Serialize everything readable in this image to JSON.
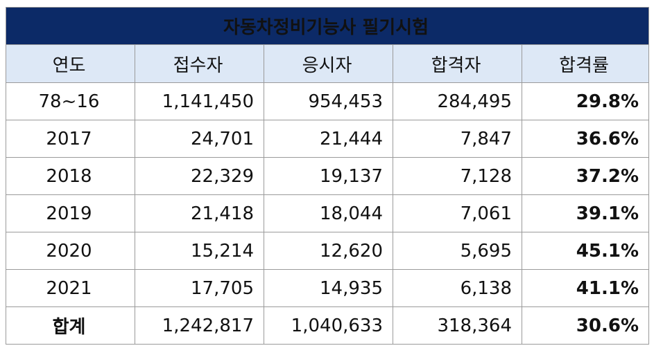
{
  "table": {
    "title": "자동차정비기능사 필기시험",
    "headers": [
      "연도",
      "접수자",
      "응시자",
      "합격자",
      "합격률"
    ],
    "rows": [
      {
        "year": "78~16",
        "applicants": "1,141,450",
        "examinees": "954,453",
        "passers": "284,495",
        "pass_rate": "29.8%"
      },
      {
        "year": "2017",
        "applicants": "24,701",
        "examinees": "21,444",
        "passers": "7,847",
        "pass_rate": "36.6%"
      },
      {
        "year": "2018",
        "applicants": "22,329",
        "examinees": "19,137",
        "passers": "7,128",
        "pass_rate": "37.2%"
      },
      {
        "year": "2019",
        "applicants": "21,418",
        "examinees": "18,044",
        "passers": "7,061",
        "pass_rate": "39.1%"
      },
      {
        "year": "2020",
        "applicants": "15,214",
        "examinees": "12,620",
        "passers": "5,695",
        "pass_rate": "45.1%"
      },
      {
        "year": "2021",
        "applicants": "17,705",
        "examinees": "14,935",
        "passers": "6,138",
        "pass_rate": "41.1%"
      }
    ],
    "total": {
      "year": "합계",
      "applicants": "1,242,817",
      "examinees": "1,040,633",
      "passers": "318,364",
      "pass_rate": "30.6%"
    }
  },
  "colors": {
    "title_background": "#0c2a67",
    "header_background": "#dde8f6",
    "border": "#9a9a9a"
  }
}
